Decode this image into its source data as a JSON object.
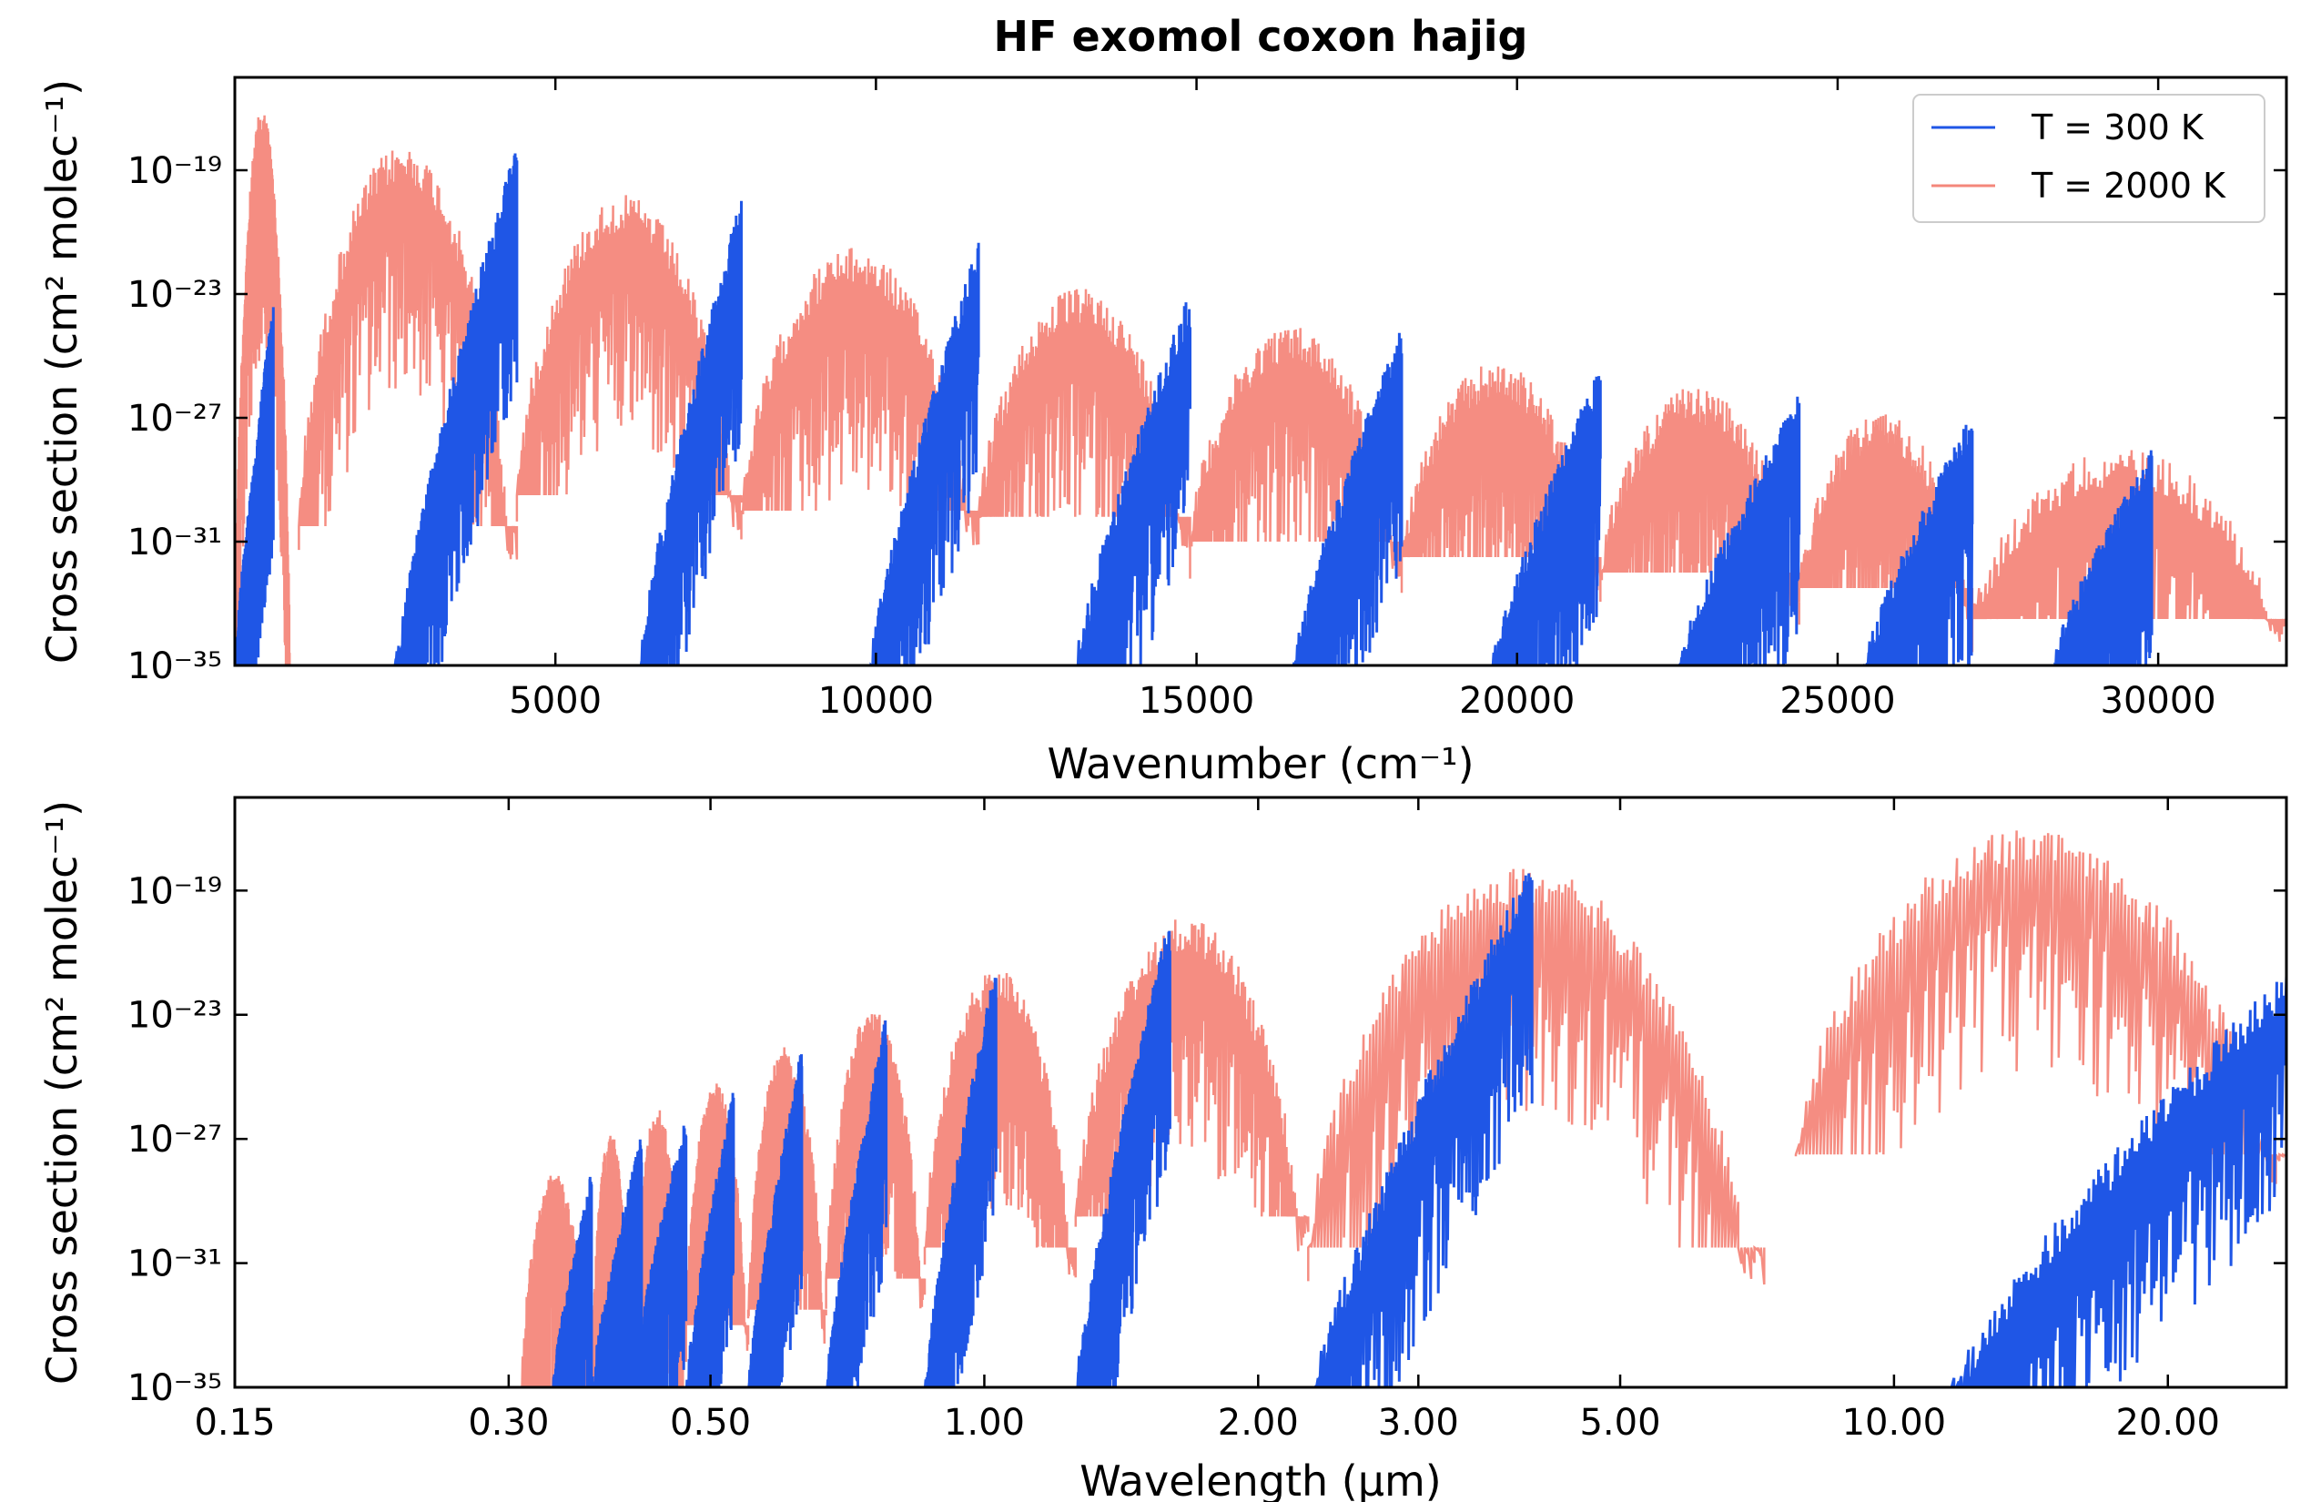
{
  "chart_data": [
    {
      "type": "line",
      "title": "HF exomol coxon hajig",
      "xlabel": "Wavenumber (cm⁻¹)",
      "ylabel": "Cross section (cm² molec⁻¹)",
      "xlim": [
        0,
        32000
      ],
      "ylim": [
        1e-35,
        1e-16
      ],
      "y_scale": "log",
      "grid": false,
      "legend_position": "top-right",
      "x_ticks": [
        {
          "value": 5000,
          "label": "5000"
        },
        {
          "value": 10000,
          "label": "10000"
        },
        {
          "value": 15000,
          "label": "15000"
        },
        {
          "value": 20000,
          "label": "20000"
        },
        {
          "value": 25000,
          "label": "25000"
        },
        {
          "value": 30000,
          "label": "30000"
        }
      ],
      "y_ticks": [
        {
          "exp": -19,
          "label": "10⁻¹⁹"
        },
        {
          "exp": -23,
          "label": "10⁻²³"
        },
        {
          "exp": -27,
          "label": "10⁻²⁷"
        },
        {
          "exp": -31,
          "label": "10⁻³¹"
        },
        {
          "exp": -35,
          "label": "10⁻³⁵"
        }
      ],
      "series": [
        {
          "name": "T = 300 K",
          "color": "#1f56e6",
          "bands": [
            {
              "x_start": 0,
              "x_end": 600,
              "peak_exp": -23.2,
              "floor_exp": -35
            },
            {
              "x_start": 2500,
              "x_end": 4400,
              "peak_exp": -18.0,
              "floor_exp": -35
            },
            {
              "x_start": 6300,
              "x_end": 7900,
              "peak_exp": -19.8,
              "floor_exp": -35
            },
            {
              "x_start": 9900,
              "x_end": 11600,
              "peak_exp": -21.3,
              "floor_exp": -35
            },
            {
              "x_start": 13100,
              "x_end": 14900,
              "peak_exp": -22.9,
              "floor_exp": -35
            },
            {
              "x_start": 16500,
              "x_end": 18200,
              "peak_exp": -24.0,
              "floor_exp": -35
            },
            {
              "x_start": 19600,
              "x_end": 21300,
              "peak_exp": -25.3,
              "floor_exp": -35
            },
            {
              "x_start": 22500,
              "x_end": 24400,
              "peak_exp": -26.2,
              "floor_exp": -35
            },
            {
              "x_start": 25400,
              "x_end": 27100,
              "peak_exp": -26.8,
              "floor_exp": -35
            },
            {
              "x_start": 28300,
              "x_end": 29900,
              "peak_exp": -28.0,
              "floor_exp": -35
            }
          ]
        },
        {
          "name": "T = 2000 K",
          "color": "#f4877b",
          "bands": [
            {
              "x_start": 0,
              "x_end": 900,
              "peak_exp": -17.0,
              "floor_exp": -35
            },
            {
              "x_start": 1000,
              "x_end": 4400,
              "peak_exp": -18.2,
              "floor_exp": -30.5
            },
            {
              "x_start": 4400,
              "x_end": 7900,
              "peak_exp": -19.8,
              "floor_exp": -29.5
            },
            {
              "x_start": 7900,
              "x_end": 11600,
              "peak_exp": -21.5,
              "floor_exp": -30.0
            },
            {
              "x_start": 11600,
              "x_end": 14900,
              "peak_exp": -22.8,
              "floor_exp": -30.2
            },
            {
              "x_start": 14900,
              "x_end": 18200,
              "peak_exp": -24.0,
              "floor_exp": -31.0
            },
            {
              "x_start": 18200,
              "x_end": 21300,
              "peak_exp": -25.2,
              "floor_exp": -31.5
            },
            {
              "x_start": 21300,
              "x_end": 24400,
              "peak_exp": -26.0,
              "floor_exp": -32.0
            },
            {
              "x_start": 24400,
              "x_end": 27100,
              "peak_exp": -26.8,
              "floor_exp": -32.5
            },
            {
              "x_start": 27100,
              "x_end": 32000,
              "peak_exp": -28.0,
              "floor_exp": -33.5
            }
          ]
        }
      ]
    },
    {
      "type": "line",
      "xlabel": "Wavelength (μm)",
      "ylabel": "Cross section (cm² molec⁻¹)",
      "xlim": [
        0.15,
        27
      ],
      "x_scale": "log",
      "ylim": [
        1e-35,
        1e-16
      ],
      "y_scale": "log",
      "grid": false,
      "x_ticks": [
        {
          "value": 0.15,
          "label": "0.15"
        },
        {
          "value": 0.3,
          "label": "0.30"
        },
        {
          "value": 0.5,
          "label": "0.50"
        },
        {
          "value": 1.0,
          "label": "1.00"
        },
        {
          "value": 2.0,
          "label": "2.00"
        },
        {
          "value": 3.0,
          "label": "3.00"
        },
        {
          "value": 5.0,
          "label": "5.00"
        },
        {
          "value": 10.0,
          "label": "10.00"
        },
        {
          "value": 20.0,
          "label": "20.00"
        }
      ],
      "y_ticks": [
        {
          "exp": -19,
          "label": "10⁻¹⁹"
        },
        {
          "exp": -23,
          "label": "10⁻²³"
        },
        {
          "exp": -27,
          "label": "10⁻²⁷"
        },
        {
          "exp": -31,
          "label": "10⁻³¹"
        },
        {
          "exp": -35,
          "label": "10⁻³⁵"
        }
      ],
      "series": [
        {
          "name": "T = 300 K",
          "color": "#1f56e6",
          "bands": [
            {
              "x_start": 0.335,
              "x_end": 0.37,
              "peak_exp": -28.0,
              "floor_exp": -35
            },
            {
              "x_start": 0.37,
              "x_end": 0.42,
              "peak_exp": -26.8,
              "floor_exp": -35
            },
            {
              "x_start": 0.41,
              "x_end": 0.47,
              "peak_exp": -26.2,
              "floor_exp": -35
            },
            {
              "x_start": 0.47,
              "x_end": 0.53,
              "peak_exp": -25.3,
              "floor_exp": -35
            },
            {
              "x_start": 0.55,
              "x_end": 0.63,
              "peak_exp": -24.0,
              "floor_exp": -35
            },
            {
              "x_start": 0.67,
              "x_end": 0.78,
              "peak_exp": -22.9,
              "floor_exp": -35
            },
            {
              "x_start": 0.86,
              "x_end": 1.03,
              "peak_exp": -21.3,
              "floor_exp": -35
            },
            {
              "x_start": 1.26,
              "x_end": 1.6,
              "peak_exp": -19.8,
              "floor_exp": -35
            },
            {
              "x_start": 2.3,
              "x_end": 4.0,
              "peak_exp": -18.0,
              "floor_exp": -35
            },
            {
              "x_start": 11.5,
              "x_end": 27.0,
              "peak_exp": -21.5,
              "floor_exp": -35
            }
          ]
        },
        {
          "name": "T = 2000 K",
          "color": "#f4877b",
          "bands": [
            {
              "x_start": 0.31,
              "x_end": 0.37,
              "peak_exp": -28.0,
              "floor_exp": -35
            },
            {
              "x_start": 0.37,
              "x_end": 0.41,
              "peak_exp": -26.8,
              "floor_exp": -35
            },
            {
              "x_start": 0.41,
              "x_end": 0.47,
              "peak_exp": -26.0,
              "floor_exp": -35
            },
            {
              "x_start": 0.47,
              "x_end": 0.55,
              "peak_exp": -25.2,
              "floor_exp": -33.0
            },
            {
              "x_start": 0.55,
              "x_end": 0.67,
              "peak_exp": -24.0,
              "floor_exp": -32.5
            },
            {
              "x_start": 0.67,
              "x_end": 0.86,
              "peak_exp": -22.8,
              "floor_exp": -31.5
            },
            {
              "x_start": 0.86,
              "x_end": 1.26,
              "peak_exp": -21.5,
              "floor_exp": -30.5
            },
            {
              "x_start": 1.26,
              "x_end": 2.27,
              "peak_exp": -19.8,
              "floor_exp": -29.5
            },
            {
              "x_start": 2.27,
              "x_end": 7.2,
              "peak_exp": -18.2,
              "floor_exp": -30.5
            },
            {
              "x_start": 7.8,
              "x_end": 27.0,
              "peak_exp": -17.0,
              "floor_exp": -27.5
            }
          ]
        }
      ]
    }
  ]
}
